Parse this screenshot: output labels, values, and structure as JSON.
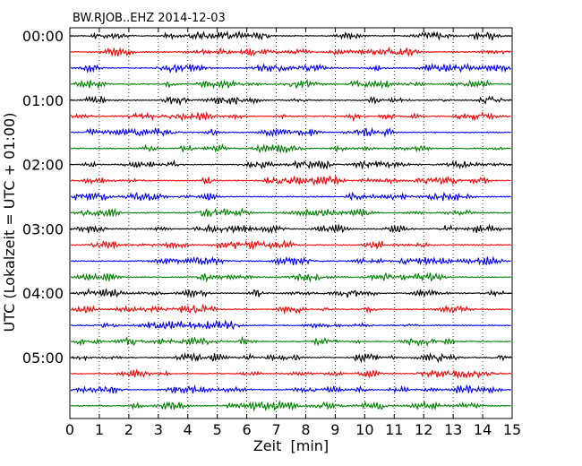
{
  "chart_data": {
    "type": "line",
    "title": "BW.RJOB..EHZ 2014-12-03",
    "xlabel": "Zeit  [min]",
    "ylabel": "UTC (Lokalzeit = UTC + 01:00)",
    "xlim": [
      0,
      15
    ],
    "x_ticks": [
      "0",
      "1",
      "2",
      "3",
      "4",
      "5",
      "6",
      "7",
      "8",
      "9",
      "10",
      "11",
      "12",
      "13",
      "14",
      "15"
    ],
    "y_tick_labels": [
      "00:00",
      "01:00",
      "02:00",
      "03:00",
      "04:00",
      "05:00"
    ],
    "traces_per_hour": 4,
    "trace_minutes": 15,
    "trace_count": 24,
    "colors": [
      "#000000",
      "#ff0000",
      "#0000ff",
      "#008000"
    ],
    "grid": "vertical dotted"
  }
}
